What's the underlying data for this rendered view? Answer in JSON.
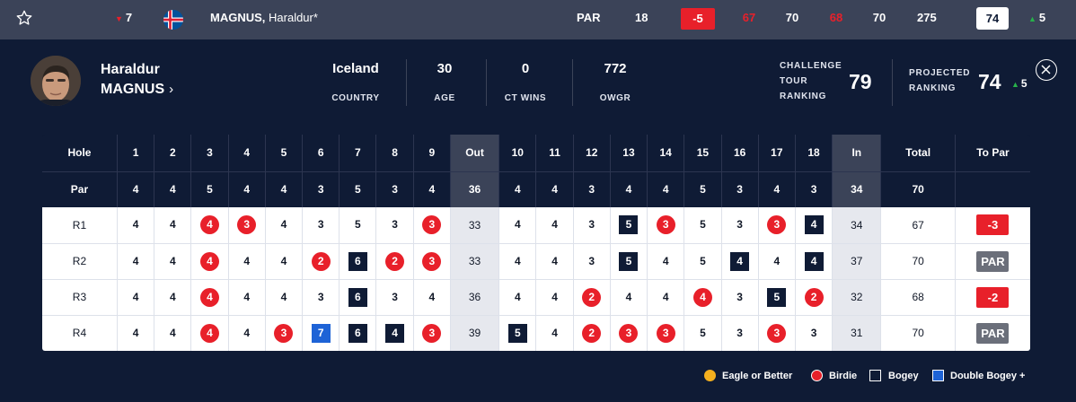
{
  "topbar": {
    "movement": "7",
    "movement_dir": "down",
    "flag": "iceland-flag",
    "last_name": "MAGNUS,",
    "first_name": "Haraldur*",
    "to_par_label": "PAR",
    "thru": "18",
    "to_par": "-5",
    "rounds": [
      "67",
      "70",
      "68",
      "70"
    ],
    "total": "275",
    "projected": "74",
    "proj_movement": "5",
    "colors": {
      "red": "#e8202a",
      "green": "#27b24a",
      "bar": "#3b4358"
    }
  },
  "profile": {
    "first_name": "Haraldur",
    "last_name": "MAGNUS",
    "stats": [
      {
        "value": "Iceland",
        "label": "COUNTRY"
      },
      {
        "value": "30",
        "label": "AGE"
      },
      {
        "value": "0",
        "label": "CT WINS"
      },
      {
        "value": "772",
        "label": "OWGR"
      }
    ],
    "challenge_label": [
      "CHALLENGE",
      "TOUR",
      "RANKING"
    ],
    "challenge_value": "79",
    "projected_label": [
      "PROJECTED",
      "RANKING"
    ],
    "projected_value": "74",
    "projected_movement": "5"
  },
  "scorecard": {
    "hole_label": "Hole",
    "par_label": "Par",
    "out_label": "Out",
    "in_label": "In",
    "total_label": "Total",
    "to_par_label": "To Par",
    "holes_front": [
      "1",
      "2",
      "3",
      "4",
      "5",
      "6",
      "7",
      "8",
      "9"
    ],
    "holes_back": [
      "10",
      "11",
      "12",
      "13",
      "14",
      "15",
      "16",
      "17",
      "18"
    ],
    "par_front": [
      "4",
      "4",
      "5",
      "4",
      "4",
      "3",
      "5",
      "3",
      "4"
    ],
    "par_out": "36",
    "par_back": [
      "4",
      "4",
      "3",
      "4",
      "4",
      "5",
      "3",
      "4",
      "3"
    ],
    "par_in": "34",
    "par_total": "70",
    "rounds": [
      {
        "label": "R1",
        "front": [
          "4",
          "4",
          "4",
          "3",
          "4",
          "3",
          "5",
          "3",
          "3"
        ],
        "out": "33",
        "back": [
          "4",
          "4",
          "3",
          "5",
          "3",
          "5",
          "3",
          "3",
          "4"
        ],
        "in": "34",
        "total": "67",
        "to_par": "-3",
        "to_par_type": "neg"
      },
      {
        "label": "R2",
        "front": [
          "4",
          "4",
          "4",
          "4",
          "4",
          "2",
          "6",
          "2",
          "3"
        ],
        "out": "33",
        "back": [
          "4",
          "4",
          "3",
          "5",
          "4",
          "5",
          "4",
          "4",
          "4"
        ],
        "in": "37",
        "total": "70",
        "to_par": "PAR",
        "to_par_type": "even"
      },
      {
        "label": "R3",
        "front": [
          "4",
          "4",
          "4",
          "4",
          "4",
          "3",
          "6",
          "3",
          "4"
        ],
        "out": "36",
        "back": [
          "4",
          "4",
          "2",
          "4",
          "4",
          "4",
          "3",
          "5",
          "2"
        ],
        "in": "32",
        "total": "68",
        "to_par": "-2",
        "to_par_type": "neg"
      },
      {
        "label": "R4",
        "front": [
          "4",
          "4",
          "4",
          "4",
          "3",
          "7",
          "6",
          "4",
          "3"
        ],
        "out": "39",
        "back": [
          "5",
          "4",
          "2",
          "3",
          "3",
          "5",
          "3",
          "3",
          "3"
        ],
        "in": "31",
        "total": "70",
        "to_par": "PAR",
        "to_par_type": "even"
      }
    ]
  },
  "legend": [
    {
      "label": "Eagle or Better",
      "type": "eagle",
      "color": "#f5b01e"
    },
    {
      "label": "Birdie",
      "type": "birdie",
      "color": "#e8202a"
    },
    {
      "label": "Bogey",
      "type": "bogey",
      "color": "#0f1b35"
    },
    {
      "label": "Double Bogey +",
      "type": "dbogey",
      "color": "#1e63d6"
    }
  ]
}
